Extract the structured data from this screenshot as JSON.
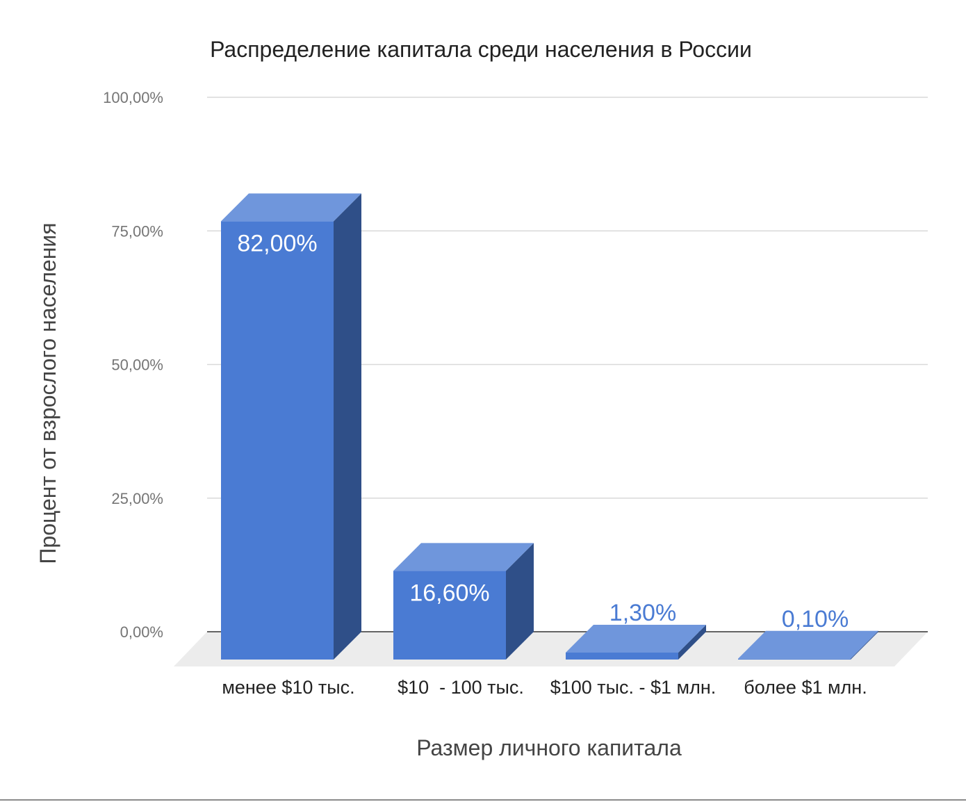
{
  "chart_data": {
    "type": "bar",
    "title": "Распределение капитала среди населения в России",
    "xlabel": "Размер личного капитала",
    "ylabel": "Процент от взрослого населения",
    "categories": [
      "менее $10 тыс.",
      "$10  - 100 тыс.",
      "$100 тыс. - $1 млн.",
      "более $1 млн."
    ],
    "values": [
      82.0,
      16.6,
      1.3,
      0.1
    ],
    "data_labels": [
      "82,00%",
      "16,60%",
      "1,30%",
      "0,10%"
    ],
    "ylim": [
      0,
      100
    ],
    "yticks": [
      0,
      25,
      50,
      75,
      100
    ],
    "ytick_labels": [
      "0,00%",
      "25,00%",
      "50,00%",
      "75,00%",
      "100,00%"
    ],
    "grid": true,
    "legend": "none",
    "style": "3d",
    "colors": {
      "bar_front": "#4a7bd3",
      "bar_top": "#6f96dc",
      "bar_side": "#2f4f88",
      "label_inside": "#ffffff",
      "label_outside": "#4a7bd3",
      "grid": "#d9d9d9",
      "floor": "#ececec",
      "tick_text": "#757575",
      "title_text": "#222222",
      "axis_title_text": "#444444"
    }
  }
}
